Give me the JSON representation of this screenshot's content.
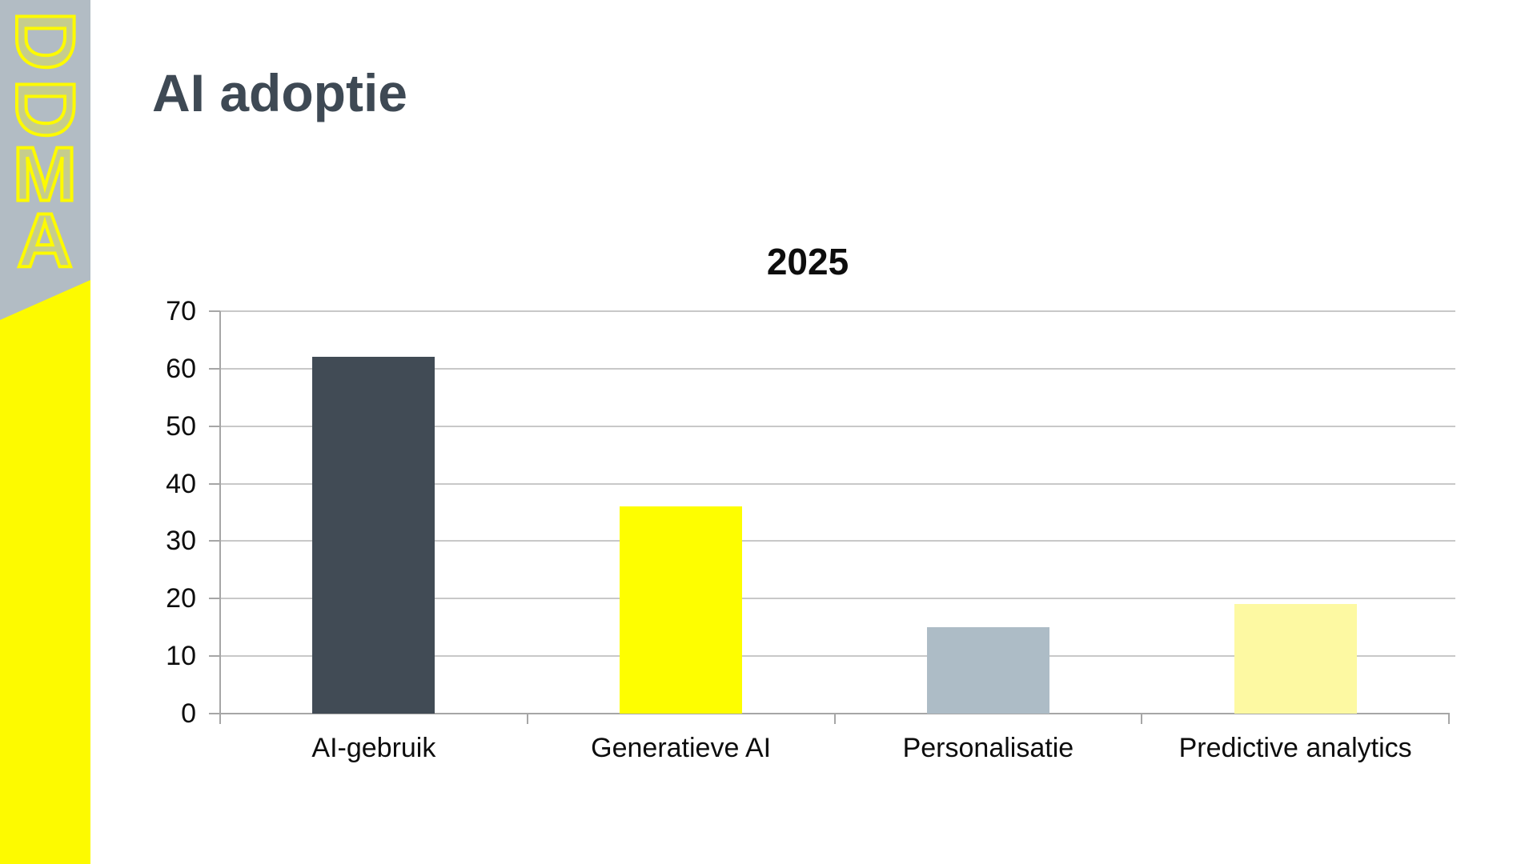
{
  "page": {
    "title": "AI adoptie"
  },
  "sidebar": {
    "logo_letters": [
      "D",
      "D",
      "M",
      "A"
    ]
  },
  "chart_data": {
    "type": "bar",
    "title": "2025",
    "categories": [
      "AI-gebruik",
      "Generatieve AI",
      "Personalisatie",
      "Predictive analytics"
    ],
    "values": [
      62,
      36,
      15,
      19
    ],
    "bar_colors": [
      "#414b55",
      "#fefe00",
      "#adbcc6",
      "#fdf9a2"
    ],
    "xlabel": "",
    "ylabel": "",
    "ylim": [
      0,
      70
    ],
    "yticks": [
      0,
      10,
      20,
      30,
      40,
      50,
      60,
      70
    ],
    "grid": true,
    "legend": "none"
  },
  "colors": {
    "brand_yellow": "#fdfa00",
    "sidebar_gray": "#b2bcc4",
    "logo_letter_fill": "rgba(253,250,0,0.28)",
    "title_text": "#3e4954",
    "chart_text": "#0d0d0d",
    "gridline": "#c8c8c8",
    "axis": "#a6a6a6",
    "background": "#ffffff"
  }
}
